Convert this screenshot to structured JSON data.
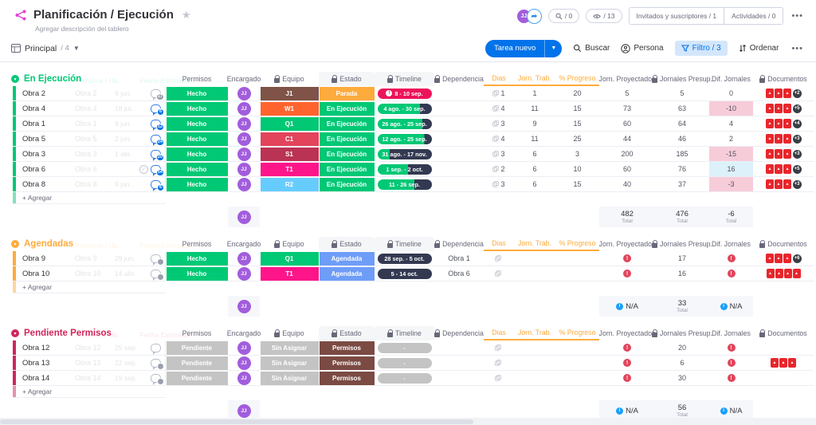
{
  "header": {
    "title": "Planificación / Ejecución",
    "description": "Agregar descripción del tablero",
    "view_label": "Principal",
    "view_count": "/ 4",
    "avatar": "JJ",
    "counter_search": "/ 0",
    "counter_views": "/ 13",
    "invites_label": "Invitados y suscriptores / 1",
    "activities_label": "Actividades / 0",
    "more_label": "•••"
  },
  "toolbar": {
    "new_task_label": "Tarea nuevo",
    "search_label": "Buscar",
    "person_label": "Persona",
    "filter_label": "Filtro / 3",
    "sort_label": "Ordenar",
    "more_label": "•••"
  },
  "colors": {
    "accent_blue": "#0073ea",
    "green": "#00c875",
    "orange": "#fdab3d",
    "dark_timeline": "#333951",
    "alert_red": "#e2445c",
    "avatar_purple": "#a25ddc"
  },
  "board": {
    "ghost_headers": [
      "Permisos / Ub.",
      "Fecha Estimada"
    ],
    "columns": [
      {
        "label": "Permisos",
        "lock": false,
        "orange": false,
        "shaded": false
      },
      {
        "label": "Encargado",
        "lock": false,
        "orange": false,
        "shaded": false
      },
      {
        "label": "Equipo",
        "lock": true,
        "orange": false,
        "shaded": false
      },
      {
        "label": "Estado",
        "lock": true,
        "orange": false,
        "shaded": true
      },
      {
        "label": "Timeline",
        "lock": true,
        "orange": false,
        "shaded": true
      },
      {
        "label": "Dependencia",
        "lock": true,
        "orange": false,
        "shaded": false
      },
      {
        "label": "Dias",
        "lock": false,
        "orange": true,
        "shaded": false
      },
      {
        "label": "Jorn. Trab.",
        "lock": false,
        "orange": true,
        "shaded": false
      },
      {
        "label": "% Progreso",
        "lock": false,
        "orange": true,
        "shaded": false
      },
      {
        "label": "Jorn. Proyectados",
        "lock": false,
        "orange": false,
        "shaded": false
      },
      {
        "label": "Jornales Presup.",
        "lock": true,
        "orange": false,
        "shaded": false
      },
      {
        "label": "Dif. Jornales",
        "lock": false,
        "orange": false,
        "shaded": false
      },
      {
        "label": "Documentos",
        "lock": true,
        "orange": false,
        "shaded": false
      }
    ],
    "add_label": "+ Agregar",
    "total_label": "Total",
    "na_label": "N/A",
    "groups": [
      {
        "name": "En Ejecución",
        "color": "#00c875",
        "rows": [
          {
            "name": "Obra 2",
            "ghost_date": "9 jun.",
            "updates": {
              "count": "17",
              "color": "gray"
            },
            "check": false,
            "permisos": {
              "label": "Hecho",
              "color": "#00c875"
            },
            "encargado": "JJ",
            "equipo": {
              "label": "J1",
              "color": "#7f5347"
            },
            "estado": {
              "label": "Parada",
              "color": "#fdab3d"
            },
            "timeline": {
              "label": "8 - 10 sep.",
              "style": "alert",
              "pct": 100
            },
            "dependencia": "",
            "dias": "1",
            "jorn_trab": "1",
            "progreso": "20",
            "proyectados": "5",
            "presup": "5",
            "dif": {
              "value": "0",
              "bg": ""
            },
            "docs": {
              "count": 3,
              "extra": "+2"
            }
          },
          {
            "name": "Obra 4",
            "ghost_date": "18 jul.",
            "updates": {
              "count": "6",
              "color": "blue"
            },
            "check": false,
            "permisos": {
              "label": "Hecho",
              "color": "#00c875"
            },
            "encargado": "JJ",
            "equipo": {
              "label": "W1",
              "color": "#ff642e"
            },
            "estado": {
              "label": "En Ejecución",
              "color": "#00c875"
            },
            "timeline": {
              "label": "4 ago. - 30 sep.",
              "style": "split",
              "pct": 78
            },
            "dependencia": "",
            "dias": "4",
            "jorn_trab": "11",
            "progreso": "15",
            "proyectados": "73",
            "presup": "63",
            "dif": {
              "value": "-10",
              "bg": "neg"
            },
            "docs": {
              "count": 3,
              "extra": "+5"
            }
          },
          {
            "name": "Obra 1",
            "ghost_date": "9 jun.",
            "updates": {
              "count": "12",
              "color": "blue"
            },
            "check": false,
            "permisos": {
              "label": "Hecho",
              "color": "#00c875"
            },
            "encargado": "JJ",
            "equipo": {
              "label": "Q1",
              "color": "#00c875"
            },
            "estado": {
              "label": "En Ejecución",
              "color": "#00c875"
            },
            "timeline": {
              "label": "26 ago. - 25 sep.",
              "style": "split",
              "pct": 82
            },
            "dependencia": "",
            "dias": "3",
            "jorn_trab": "9",
            "progreso": "15",
            "proyectados": "60",
            "presup": "64",
            "dif": {
              "value": "4",
              "bg": ""
            },
            "docs": {
              "count": 3,
              "extra": "+4"
            }
          },
          {
            "name": "Obra 5",
            "ghost_date": "2 jun.",
            "updates": {
              "count": "24",
              "color": "blue"
            },
            "check": false,
            "permisos": {
              "label": "Hecho",
              "color": "#00c875"
            },
            "encargado": "JJ",
            "equipo": {
              "label": "C1",
              "color": "#e2445c"
            },
            "estado": {
              "label": "En Ejecución",
              "color": "#00c875"
            },
            "timeline": {
              "label": "12 ago. - 25 sep.",
              "style": "split",
              "pct": 86
            },
            "dependencia": "",
            "dias": "4",
            "jorn_trab": "11",
            "progreso": "25",
            "proyectados": "44",
            "presup": "46",
            "dif": {
              "value": "2",
              "bg": ""
            },
            "docs": {
              "count": 3,
              "extra": "+3"
            }
          },
          {
            "name": "Obra 3",
            "ghost_date": "1 abr.",
            "updates": {
              "count": "20",
              "color": "blue"
            },
            "check": false,
            "permisos": {
              "label": "Hecho",
              "color": "#00c875"
            },
            "encargado": "JJ",
            "equipo": {
              "label": "S1",
              "color": "#bb3354"
            },
            "estado": {
              "label": "En Ejecución",
              "color": "#00c875"
            },
            "timeline": {
              "label": "31 ago. - 17 nov.",
              "style": "split",
              "pct": 22
            },
            "dependencia": "",
            "dias": "3",
            "jorn_trab": "6",
            "progreso": "3",
            "proyectados": "200",
            "presup": "185",
            "dif": {
              "value": "-15",
              "bg": "neg"
            },
            "docs": {
              "count": 3,
              "extra": "+3"
            }
          },
          {
            "name": "Obra 6",
            "ghost_date": "",
            "updates": {
              "count": "54",
              "color": "blue"
            },
            "check": true,
            "permisos": {
              "label": "Hecho",
              "color": "#00c875"
            },
            "encargado": "JJ",
            "equipo": {
              "label": "T1",
              "color": "#ff158a"
            },
            "estado": {
              "label": "En Ejecución",
              "color": "#00c875"
            },
            "timeline": {
              "label": "1 sep. - 2 oct.",
              "style": "split",
              "pct": 56
            },
            "dependencia": "",
            "dias": "2",
            "jorn_trab": "6",
            "progreso": "10",
            "proyectados": "60",
            "presup": "76",
            "dif": {
              "value": "16",
              "bg": "pos"
            },
            "docs": {
              "count": 3,
              "extra": "+5"
            }
          },
          {
            "name": "Obra 8",
            "ghost_date": "9 jun.",
            "updates": {
              "count": "6",
              "color": "blue"
            },
            "check": false,
            "permisos": {
              "label": "Hecho",
              "color": "#00c875"
            },
            "encargado": "JJ",
            "equipo": {
              "label": "R2",
              "color": "#66ccff"
            },
            "estado": {
              "label": "En Ejecución",
              "color": "#00c875"
            },
            "timeline": {
              "label": "11 - 26 sep.",
              "style": "split",
              "pct": 68
            },
            "dependencia": "",
            "dias": "3",
            "jorn_trab": "6",
            "progreso": "15",
            "proyectados": "40",
            "presup": "37",
            "dif": {
              "value": "-3",
              "bg": "neg"
            },
            "docs": {
              "count": 3,
              "extra": "+3"
            }
          }
        ],
        "footer": {
          "proyectados": "482",
          "presup": "476",
          "dif": "-6",
          "na": false
        }
      },
      {
        "name": "Agendadas",
        "color": "#fdab3d",
        "rows": [
          {
            "name": "Obra 9",
            "ghost_date": "29 jun.",
            "updates": {
              "count": "",
              "color": "gray"
            },
            "check": false,
            "permisos": {
              "label": "Hecho",
              "color": "#00c875"
            },
            "encargado": "JJ",
            "equipo": {
              "label": "Q1",
              "color": "#00c875"
            },
            "estado": {
              "label": "Agendada",
              "color": "#6e9df8"
            },
            "timeline": {
              "label": "28 sep. - 5 oct.",
              "style": "dark",
              "pct": 0
            },
            "dependencia": "Obra 1",
            "dias": "",
            "jorn_trab": "",
            "progreso": "",
            "proyectados": "!",
            "presup": "17",
            "dif": {
              "value": "!",
              "bg": ""
            },
            "docs": {
              "count": 3,
              "extra": "+6"
            }
          },
          {
            "name": "Obra 10",
            "ghost_date": "14 abr.",
            "updates": {
              "count": "",
              "color": "gray"
            },
            "check": false,
            "permisos": {
              "label": "Hecho",
              "color": "#00c875"
            },
            "encargado": "JJ",
            "equipo": {
              "label": "T1",
              "color": "#ff158a"
            },
            "estado": {
              "label": "Agendada",
              "color": "#6e9df8"
            },
            "timeline": {
              "label": "5 - 14 oct.",
              "style": "dark",
              "pct": 0
            },
            "dependencia": "Obra 6",
            "dias": "",
            "jorn_trab": "",
            "progreso": "",
            "proyectados": "!",
            "presup": "16",
            "dif": {
              "value": "!",
              "bg": ""
            },
            "docs": {
              "count": 4,
              "extra": ""
            }
          }
        ],
        "footer": {
          "proyectados": "N/A",
          "presup": "33",
          "dif": "N/A",
          "na": true
        }
      },
      {
        "name": "Pendiente Permisos",
        "color": "#d0265c",
        "rows": [
          {
            "name": "Obra 12",
            "ghost_date": "29 sep.",
            "updates": {
              "count": null,
              "color": "gray"
            },
            "check": false,
            "permisos": {
              "label": "Pendiente",
              "color": "#c4c4c4"
            },
            "encargado": "JJ",
            "equipo": {
              "label": "Sin Asignar",
              "color": "#c4c4c4"
            },
            "estado": {
              "label": "Permisos",
              "color": "#7b4a43"
            },
            "timeline": {
              "label": "-",
              "style": "none",
              "pct": 0
            },
            "dependencia": "",
            "dias": "",
            "jorn_trab": "",
            "progreso": "",
            "proyectados": "!",
            "presup": "20",
            "dif": {
              "value": "!",
              "bg": ""
            },
            "docs": {
              "count": 0,
              "extra": ""
            }
          },
          {
            "name": "Obra 13",
            "ghost_date": "22 sep.",
            "updates": {
              "count": "",
              "color": "gray"
            },
            "check": false,
            "permisos": {
              "label": "Pendiente",
              "color": "#c4c4c4"
            },
            "encargado": "JJ",
            "equipo": {
              "label": "Sin Asignar",
              "color": "#c4c4c4"
            },
            "estado": {
              "label": "Permisos",
              "color": "#7b4a43"
            },
            "timeline": {
              "label": "-",
              "style": "none",
              "pct": 0
            },
            "dependencia": "",
            "dias": "",
            "jorn_trab": "",
            "progreso": "",
            "proyectados": "!",
            "presup": "6",
            "dif": {
              "value": "!",
              "bg": ""
            },
            "docs": {
              "count": 3,
              "extra": ""
            }
          },
          {
            "name": "Obra 14",
            "ghost_date": "19 sep.",
            "updates": {
              "count": "",
              "color": "gray"
            },
            "check": false,
            "permisos": {
              "label": "Pendiente",
              "color": "#c4c4c4"
            },
            "encargado": "JJ",
            "equipo": {
              "label": "Sin Asignar",
              "color": "#c4c4c4"
            },
            "estado": {
              "label": "Permisos",
              "color": "#7b4a43"
            },
            "timeline": {
              "label": "-",
              "style": "none",
              "pct": 0
            },
            "dependencia": "",
            "dias": "",
            "jorn_trab": "",
            "progreso": "",
            "proyectados": "!",
            "presup": "30",
            "dif": {
              "value": "!",
              "bg": ""
            },
            "docs": {
              "count": 0,
              "extra": ""
            }
          }
        ],
        "footer": {
          "proyectados": "N/A",
          "presup": "56",
          "dif": "N/A",
          "na": true
        }
      }
    ]
  }
}
